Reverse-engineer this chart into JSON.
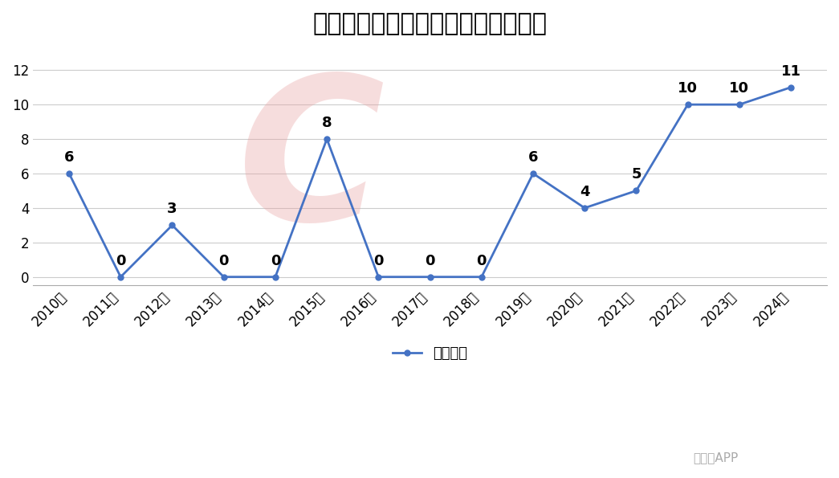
{
  "title": "近十五年中国核电机组每年核准数量",
  "years": [
    "2010年",
    "2011年",
    "2012年",
    "2013年",
    "2014年",
    "2015年",
    "2016年",
    "2017年",
    "2018年",
    "2019年",
    "2020年",
    "2021年",
    "2022年",
    "2023年",
    "2024年"
  ],
  "values": [
    6,
    0,
    3,
    0,
    0,
    8,
    0,
    0,
    0,
    6,
    4,
    5,
    10,
    10,
    11
  ],
  "line_color": "#4472C4",
  "line_width": 2.0,
  "marker": "o",
  "marker_size": 5,
  "ylim": [
    -0.5,
    13
  ],
  "yticks": [
    0,
    2,
    4,
    6,
    8,
    10,
    12
  ],
  "legend_label": "核准台数",
  "background_color": "#ffffff",
  "grid_color": "#cccccc",
  "title_fontsize": 22,
  "legend_fontsize": 13,
  "tick_fontsize": 12,
  "annotation_fontsize": 13
}
